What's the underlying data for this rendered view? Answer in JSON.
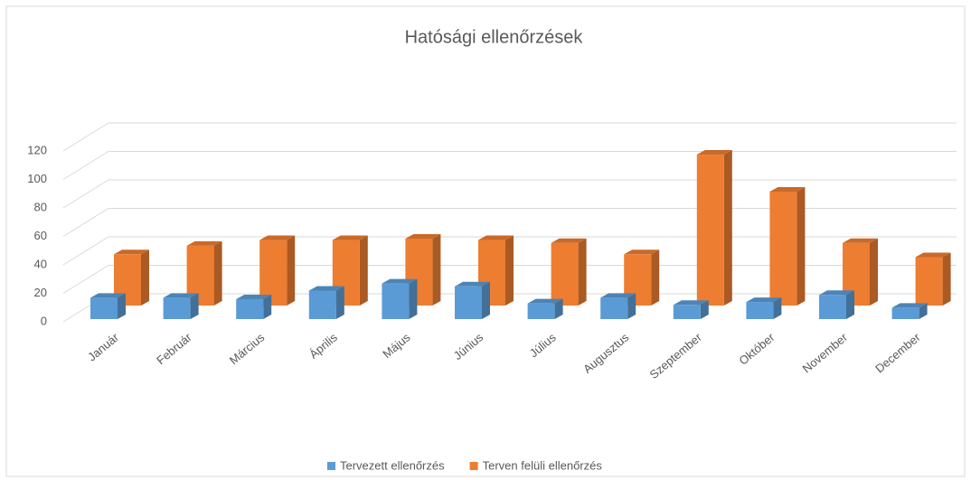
{
  "chart_data": {
    "type": "bar3d",
    "title": "Hatósági ellenőrzések",
    "categories": [
      "Január",
      "Február",
      "Március",
      "Április",
      "Május",
      "Június",
      "Július",
      "Augusztus",
      "Szeptember",
      "Október",
      "November",
      "December"
    ],
    "series": [
      {
        "name": "Tervezett ellenőrzés",
        "color": "#5b9bd5",
        "values": [
          15,
          15,
          14,
          20,
          25,
          23,
          11,
          15,
          10,
          12,
          17,
          8
        ]
      },
      {
        "name": "Terven felüli ellenőrzés",
        "color": "#ed7d31",
        "values": [
          36,
          42,
          46,
          46,
          47,
          46,
          44,
          36,
          106,
          80,
          44,
          34
        ]
      }
    ],
    "ylim": [
      0,
      120
    ],
    "yticks": [
      0,
      20,
      40,
      60,
      80,
      100,
      120
    ],
    "grid": true,
    "legend": "bottom"
  }
}
